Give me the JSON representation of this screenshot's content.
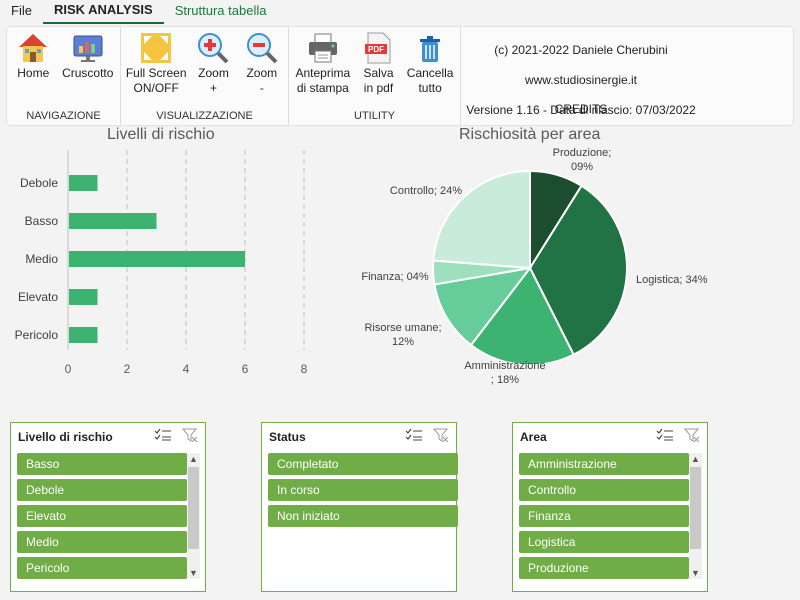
{
  "tabs": [
    "File",
    "RISK ANALYSIS",
    "Struttura tabella"
  ],
  "ribbon": {
    "navigazione": {
      "label": "NAVIGAZIONE",
      "home": "Home",
      "cruscotto": "Cruscotto"
    },
    "visualizzazione": {
      "label": "VISUALIZZAZIONE",
      "fullscreen_1": "Full Screen",
      "fullscreen_2": "ON/OFF",
      "zoom_in_1": "Zoom",
      "zoom_in_2": "+",
      "zoom_out_1": "Zoom",
      "zoom_out_2": "-"
    },
    "utility": {
      "label": "UTILITY",
      "preview_1": "Anteprima",
      "preview_2": "di stampa",
      "pdf_1": "Salva",
      "pdf_2": "in pdf",
      "clear_1": "Cancella",
      "clear_2": "tutto",
      "pdf_badge": "PDF"
    },
    "credits": {
      "label": "CREDITS",
      "copyright": "(c) 2021-2022 Daniele Cherubini",
      "site": "www.studiosinergie.it",
      "version": "Versione 1.16 - Data di rilascio: 07/03/2022"
    }
  },
  "charts": {
    "bar_title": "Livelli di rischio",
    "pie_title": "Rischiosità per area"
  },
  "chart_data": [
    {
      "type": "bar",
      "title": "Livelli di rischio",
      "orientation": "horizontal",
      "categories": [
        "Debole",
        "Basso",
        "Medio",
        "Elevato",
        "Pericolo"
      ],
      "values": [
        1,
        3,
        6,
        1,
        1
      ],
      "xlim": [
        0,
        8
      ],
      "xticks": [
        "0",
        "2",
        "4",
        "6",
        "8"
      ],
      "grid": "vertical dashed",
      "color": "#3cb371"
    },
    {
      "type": "pie",
      "title": "Rischiosità per area",
      "labels": [
        "Produzione",
        "Logistica",
        "Amministrazione",
        "Risorse umane",
        "Finanza",
        "Controllo"
      ],
      "values": [
        9,
        34,
        18,
        12,
        4,
        24
      ],
      "display_labels": [
        [
          "Produzione;",
          "09%"
        ],
        [
          "Logistica; 34%"
        ],
        [
          "Amministrazione",
          "; 18%"
        ],
        [
          "Risorse umane;",
          "12%"
        ],
        [
          "Finanza; 04%"
        ],
        [
          "Controllo; 24%"
        ]
      ],
      "colors": [
        "#1b4d2e",
        "#217346",
        "#3cb371",
        "#66cc99",
        "#9edfbe",
        "#c8ecd9"
      ]
    }
  ],
  "slicers": [
    {
      "title": "Livello di rischio",
      "items": [
        "Basso",
        "Debole",
        "Elevato",
        "Medio",
        "Pericolo"
      ],
      "scrollbar": true
    },
    {
      "title": "Status",
      "items": [
        "Completato",
        "In corso",
        "Non iniziato"
      ],
      "scrollbar": false
    },
    {
      "title": "Area",
      "items": [
        "Amministrazione",
        "Controllo",
        "Finanza",
        "Logistica",
        "Produzione"
      ],
      "scrollbar": true
    }
  ],
  "colors": {
    "accent": "#70ad47",
    "tab_green": "#1a7a3a"
  }
}
